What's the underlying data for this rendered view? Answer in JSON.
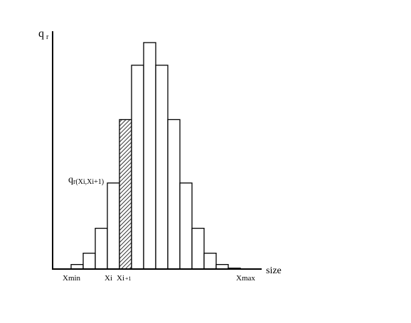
{
  "chart_data": {
    "type": "bar",
    "ylabel_main": "q",
    "ylabel_sub": "r",
    "xlabel": "size",
    "highlight_main": "q",
    "highlight_sub": "r(Xi,Xi+1)",
    "highlight_index": 4,
    "tick_labels": [
      {
        "text": "Xmin",
        "bin": 1
      },
      {
        "text": "Xi",
        "bin": 4
      },
      {
        "text": "Xi",
        "sub": "+1",
        "bin": 5
      },
      {
        "text": "Xmax",
        "bin": 15
      }
    ],
    "values": [
      0.02,
      0.07,
      0.18,
      0.38,
      0.66,
      0.9,
      1.0,
      0.9,
      0.66,
      0.38,
      0.18,
      0.07,
      0.02,
      0.004
    ],
    "ylim": [
      0,
      1
    ],
    "grid": false,
    "legend": "none"
  }
}
